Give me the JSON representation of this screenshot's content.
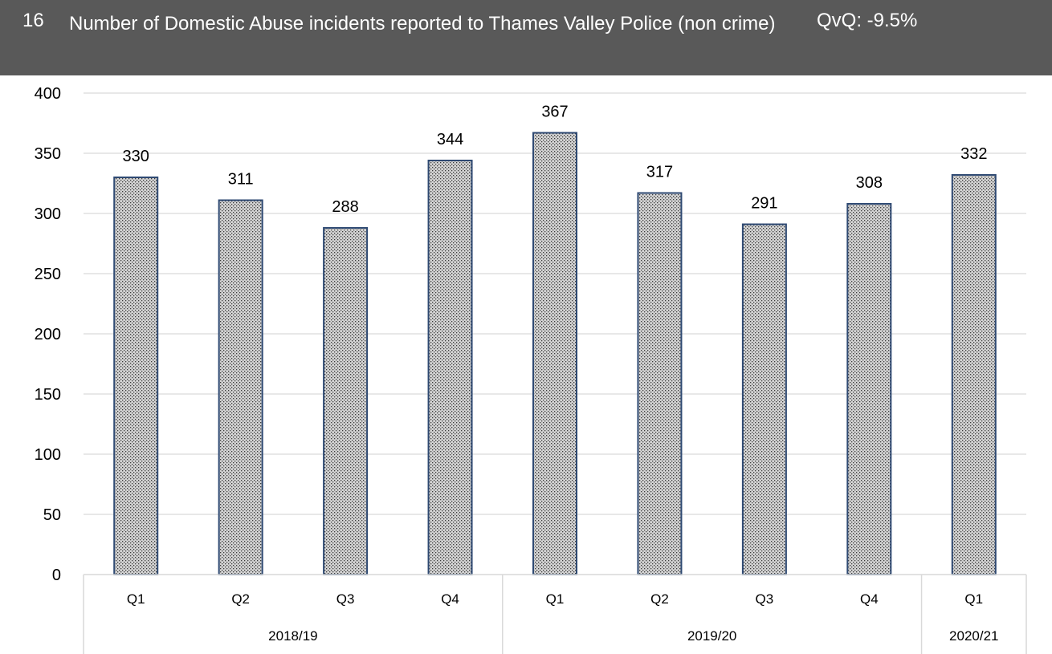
{
  "header": {
    "number": "16",
    "title": "Number of Domestic Abuse incidents reported to Thames Valley Police (non crime)",
    "change": "QvQ: -9.5%"
  },
  "chart_data": {
    "type": "bar",
    "title": "Number of Domestic Abuse incidents reported to Thames Valley Police (non crime)",
    "categories": [
      "Q1",
      "Q2",
      "Q3",
      "Q4",
      "Q1",
      "Q2",
      "Q3",
      "Q4",
      "Q1"
    ],
    "groups": [
      {
        "label": "2018/19",
        "count": 4
      },
      {
        "label": "2019/20",
        "count": 4
      },
      {
        "label": "2020/21",
        "count": 1
      }
    ],
    "values": [
      330,
      311,
      288,
      344,
      367,
      317,
      291,
      308,
      332
    ],
    "data_labels": [
      "330",
      "311",
      "288",
      "344",
      "367",
      "317",
      "291",
      "308",
      "332"
    ],
    "ylim": [
      0,
      400
    ],
    "yticks": [
      0,
      50,
      100,
      150,
      200,
      250,
      300,
      350,
      400
    ],
    "grid": true,
    "xlabel": "",
    "ylabel": "",
    "colors": {
      "bar_fill": "#d4d4d4",
      "bar_dot": "#3a3a3a",
      "bar_border": "#2f4a73",
      "grid": "#d9d9d9"
    }
  }
}
